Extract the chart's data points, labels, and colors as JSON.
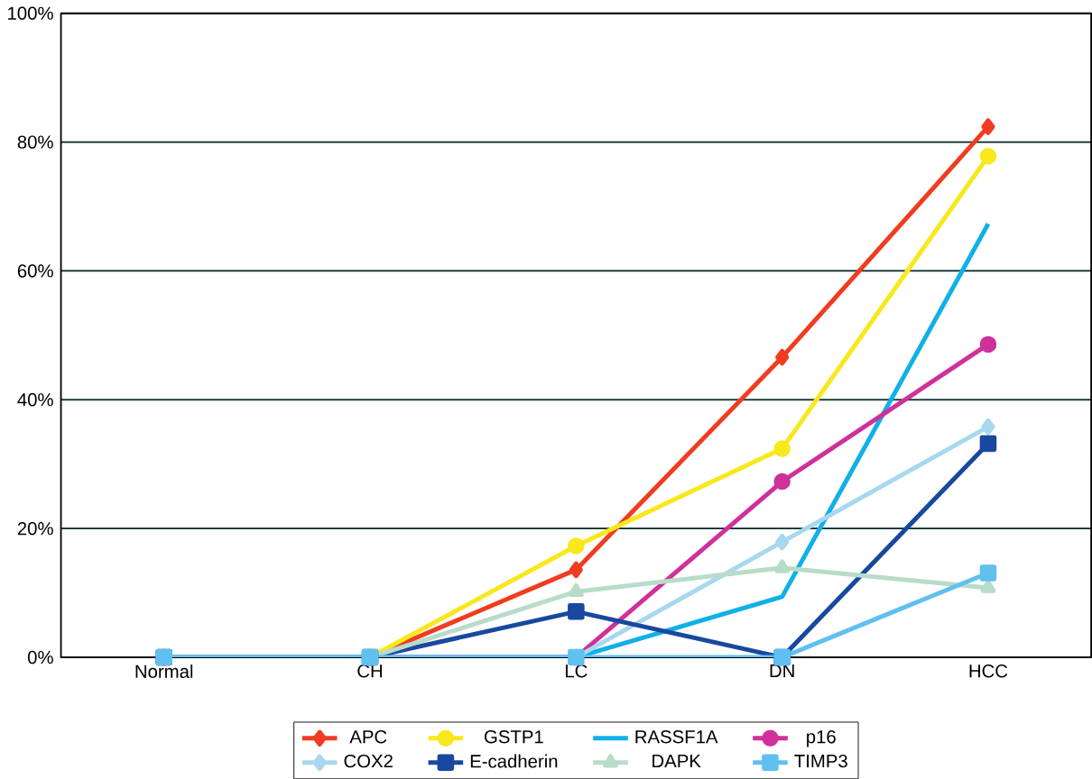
{
  "chart_data": {
    "type": "line",
    "categories": [
      "Normal",
      "CH",
      "LC",
      "DN",
      "HCC"
    ],
    "ylim": [
      0,
      100
    ],
    "yticks": [
      {
        "value": 0,
        "label": "0%"
      },
      {
        "value": 20,
        "label": "20%"
      },
      {
        "value": 40,
        "label": "40%"
      },
      {
        "value": 60,
        "label": "60%"
      },
      {
        "value": 80,
        "label": "80%"
      },
      {
        "value": 100,
        "label": "100%"
      }
    ],
    "grid": "y",
    "legend": "bottom",
    "series": [
      {
        "name": "APC",
        "color": "#f03c20",
        "marker": "diamond",
        "values": [
          0,
          0,
          13.6,
          46.6,
          82.4
        ]
      },
      {
        "name": "GSTP1",
        "color": "#f8e81c",
        "marker": "circle",
        "values": [
          0,
          0,
          17.3,
          32.4,
          77.8
        ]
      },
      {
        "name": "RASSF1A",
        "color": "#10b0e8",
        "marker": "none",
        "values": [
          0,
          0,
          0,
          9.4,
          67.3
        ]
      },
      {
        "name": "p16",
        "color": "#d0309a",
        "marker": "circle",
        "values": [
          0,
          0,
          0,
          27.3,
          48.6
        ]
      },
      {
        "name": "COX2",
        "color": "#a8d8f0",
        "marker": "diamond",
        "values": [
          0,
          0,
          0,
          17.9,
          35.8
        ]
      },
      {
        "name": "E-cadherin",
        "color": "#1848a0",
        "marker": "square",
        "values": [
          0,
          0,
          7.1,
          0,
          33.2
        ]
      },
      {
        "name": "DAPK",
        "color": "#b8dcc8",
        "marker": "triangle",
        "values": [
          0,
          0,
          10.2,
          13.9,
          10.8
        ]
      },
      {
        "name": "TIMP3",
        "color": "#60c0f0",
        "marker": "square",
        "values": [
          0,
          0,
          0,
          0,
          13.1
        ]
      }
    ]
  }
}
